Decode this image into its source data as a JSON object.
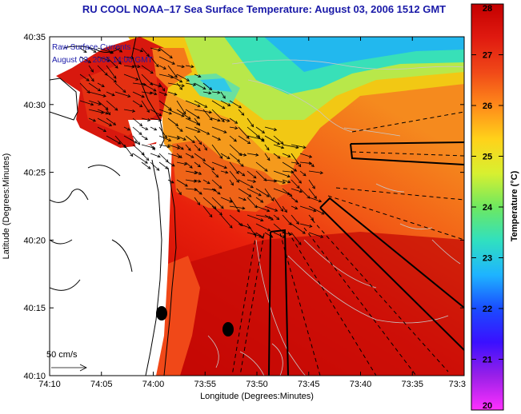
{
  "title": "RU COOL  NOAA–17  Sea Surface Temperature:  August 03, 2006 1512 GMT",
  "overlay": {
    "line1": "Raw Surface Currents",
    "line2": "August 03, 2006 14:00 GMT",
    "scale_label": "50 cm/s"
  },
  "axes": {
    "xlabel": "Longitude (Degrees:Minutes)",
    "ylabel": "Latitude (Degrees:Minutes)",
    "xticks": [
      "74:10",
      "74:05",
      "74:00",
      "73:55",
      "73:50",
      "73:45",
      "73:40",
      "73:35",
      "73:3"
    ],
    "yticks": [
      "40:35",
      "40:30",
      "40:25",
      "40:20",
      "40:15",
      "40:10"
    ]
  },
  "colorbar": {
    "label": "Temperature (°C)",
    "ticks": [
      "28",
      "27",
      "26",
      "25",
      "24",
      "23",
      "22",
      "21",
      "20"
    ],
    "colors": [
      "#c40000",
      "#e01a10",
      "#f04818",
      "#ff8a1a",
      "#ffd21a",
      "#d8f030",
      "#6ee860",
      "#30e0c0",
      "#1eb4ff",
      "#1a4cff",
      "#3a10ff",
      "#9a20e8",
      "#ff30ff"
    ]
  }
}
